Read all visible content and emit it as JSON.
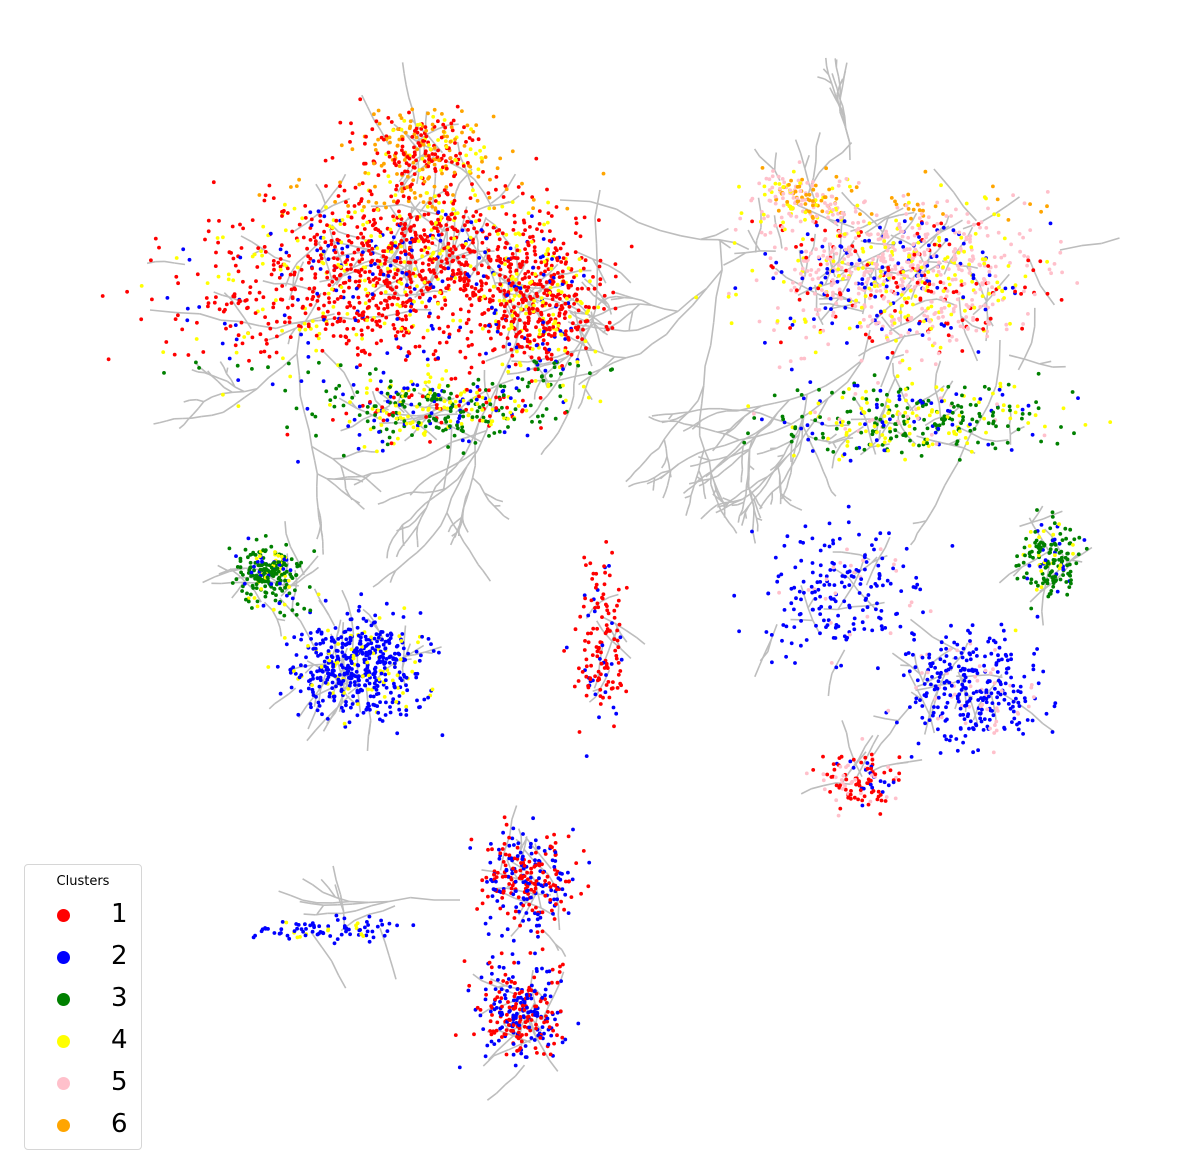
{
  "figure": {
    "type": "neuron-skeleton-scatter",
    "edge_color": "#bdbdbd",
    "background": "#ffffff"
  },
  "legend": {
    "title": "Clusters",
    "items": [
      {
        "label": "1",
        "color": "#ff0000"
      },
      {
        "label": "2",
        "color": "#0000ff"
      },
      {
        "label": "3",
        "color": "#008000"
      },
      {
        "label": "4",
        "color": "#ffff00"
      },
      {
        "label": "5",
        "color": "#ffc0cb"
      },
      {
        "label": "6",
        "color": "#ffa500"
      }
    ]
  }
}
